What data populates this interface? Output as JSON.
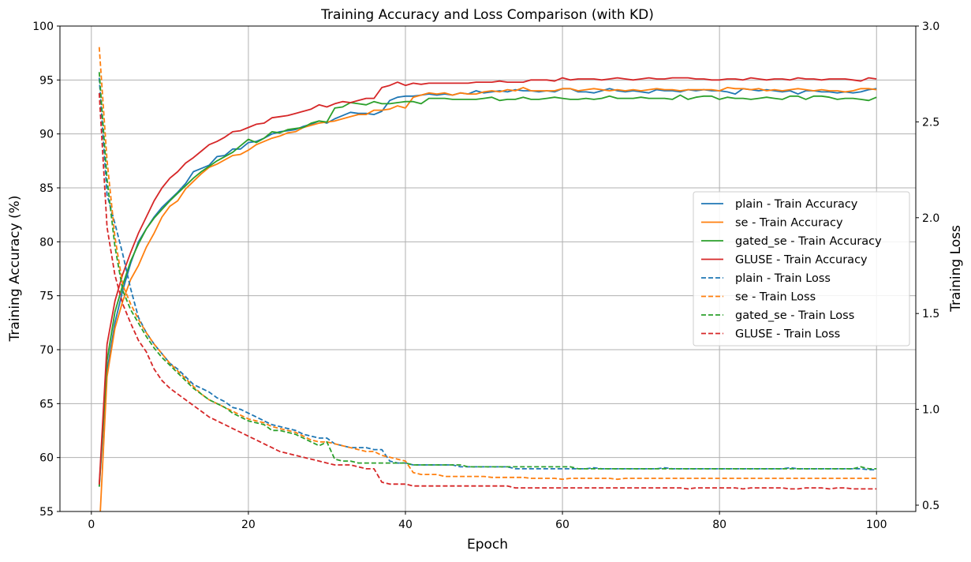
{
  "chart_data": {
    "type": "line",
    "title": "Training Accuracy and Loss Comparison (with KD)",
    "xlabel": "Epoch",
    "ylabel": "Training Accuracy (%)",
    "ylabel_right": "Training Loss",
    "xlim": [
      -4,
      105
    ],
    "ylim": [
      55,
      100
    ],
    "ylim_right": [
      0.467,
      3.0
    ],
    "xticks": [
      0,
      20,
      40,
      60,
      80,
      100
    ],
    "yticks": [
      55,
      60,
      65,
      70,
      75,
      80,
      85,
      90,
      95,
      100
    ],
    "yticks_right": [
      "0.5",
      "1.0",
      "1.5",
      "2.0",
      "2.5",
      "3.0"
    ],
    "grid": true,
    "legend_position": "center-right",
    "colors": {
      "plain": "#1f77b4",
      "se": "#ff7f0e",
      "gated_se": "#2ca02c",
      "GLUSE": "#d62728"
    },
    "epochs_start": 1,
    "series": [
      {
        "name": "plain - Train Accuracy",
        "axis": "left",
        "style": "solid",
        "color": "#1f77b4",
        "values": [
          57.3,
          68.0,
          72.5,
          75.5,
          78.0,
          80.0,
          81.2,
          82.3,
          83.2,
          83.9,
          84.6,
          85.4,
          86.5,
          86.8,
          87.1,
          87.9,
          88.0,
          88.6,
          88.6,
          89.2,
          89.3,
          89.6,
          90.0,
          90.2,
          90.3,
          90.4,
          90.7,
          90.9,
          91.2,
          91.0,
          91.4,
          91.7,
          92.0,
          91.9,
          91.9,
          91.8,
          92.1,
          93.1,
          93.4,
          93.5,
          93.5,
          93.6,
          93.7,
          93.6,
          93.7,
          93.6,
          93.8,
          93.7,
          94.0,
          93.8,
          93.9,
          94.0,
          93.9,
          94.1,
          94.0,
          94.0,
          93.9,
          94.0,
          93.9,
          94.2,
          94.2,
          93.9,
          93.9,
          93.8,
          94.0,
          94.2,
          94.0,
          93.9,
          94.0,
          93.9,
          93.8,
          94.1,
          94.0,
          94.0,
          93.9,
          94.1,
          94.0,
          94.1,
          94.0,
          94.0,
          93.9,
          93.7,
          94.2,
          94.1,
          94.0,
          94.1,
          94.0,
          93.9,
          94.0,
          93.7,
          94.0,
          94.0,
          93.9,
          93.9,
          93.8,
          93.9,
          93.8,
          93.9,
          94.1,
          94.2
        ]
      },
      {
        "name": "se - Train Accuracy",
        "axis": "left",
        "style": "solid",
        "color": "#ff7f0e",
        "values": [
          53.0,
          67.5,
          72.0,
          74.5,
          76.5,
          77.8,
          79.5,
          80.8,
          82.3,
          83.3,
          83.8,
          84.9,
          85.6,
          86.3,
          86.9,
          87.2,
          87.6,
          88.0,
          88.1,
          88.5,
          89.0,
          89.3,
          89.6,
          89.8,
          90.1,
          90.2,
          90.6,
          90.8,
          91.0,
          91.1,
          91.2,
          91.4,
          91.6,
          91.8,
          91.8,
          92.2,
          92.2,
          92.3,
          92.6,
          92.4,
          93.4,
          93.6,
          93.8,
          93.7,
          93.8,
          93.6,
          93.8,
          93.7,
          93.7,
          93.9,
          94.0,
          93.9,
          94.1,
          94.0,
          94.3,
          94.0,
          94.0,
          94.0,
          94.0,
          94.2,
          94.2,
          94.0,
          94.1,
          94.2,
          94.1,
          94.0,
          94.1,
          94.0,
          94.1,
          94.0,
          94.1,
          94.2,
          94.1,
          94.1,
          94.0,
          94.1,
          94.1,
          94.1,
          94.1,
          94.0,
          94.3,
          94.2,
          94.2,
          94.1,
          94.2,
          94.0,
          94.1,
          94.0,
          94.1,
          94.2,
          94.1,
          94.0,
          94.1,
          94.0,
          94.0,
          93.9,
          94.0,
          94.2,
          94.2,
          94.1
        ]
      },
      {
        "name": "gated_se - Train Accuracy",
        "axis": "left",
        "style": "solid",
        "color": "#2ca02c",
        "values": [
          57.3,
          69.0,
          73.5,
          76.0,
          78.2,
          79.8,
          81.2,
          82.2,
          83.0,
          83.8,
          84.5,
          85.2,
          85.9,
          86.5,
          87.0,
          87.5,
          87.9,
          88.3,
          88.9,
          89.5,
          89.2,
          89.6,
          90.2,
          90.1,
          90.4,
          90.5,
          90.6,
          91.0,
          91.2,
          91.1,
          92.4,
          92.5,
          92.9,
          92.8,
          92.7,
          93.0,
          92.8,
          92.8,
          92.9,
          93.0,
          93.0,
          92.8,
          93.3,
          93.3,
          93.3,
          93.2,
          93.2,
          93.2,
          93.2,
          93.3,
          93.4,
          93.1,
          93.2,
          93.2,
          93.4,
          93.2,
          93.2,
          93.3,
          93.4,
          93.3,
          93.2,
          93.2,
          93.3,
          93.2,
          93.3,
          93.5,
          93.3,
          93.3,
          93.3,
          93.4,
          93.3,
          93.3,
          93.3,
          93.2,
          93.6,
          93.2,
          93.4,
          93.5,
          93.5,
          93.2,
          93.4,
          93.3,
          93.3,
          93.2,
          93.3,
          93.4,
          93.3,
          93.2,
          93.5,
          93.5,
          93.2,
          93.5,
          93.5,
          93.4,
          93.2,
          93.3,
          93.3,
          93.2,
          93.1,
          93.4
        ]
      },
      {
        "name": "GLUSE - Train Accuracy",
        "axis": "left",
        "style": "solid",
        "color": "#d62728",
        "values": [
          57.5,
          70.5,
          74.5,
          77.0,
          79.0,
          80.8,
          82.3,
          83.8,
          85.0,
          85.9,
          86.5,
          87.3,
          87.8,
          88.4,
          89.0,
          89.3,
          89.7,
          90.2,
          90.3,
          90.6,
          90.9,
          91.0,
          91.5,
          91.6,
          91.7,
          91.9,
          92.1,
          92.3,
          92.7,
          92.5,
          92.8,
          93.0,
          92.9,
          93.1,
          93.3,
          93.3,
          94.3,
          94.5,
          94.8,
          94.5,
          94.7,
          94.6,
          94.7,
          94.7,
          94.7,
          94.7,
          94.7,
          94.7,
          94.8,
          94.8,
          94.8,
          94.9,
          94.8,
          94.8,
          94.8,
          95.0,
          95.0,
          95.0,
          94.9,
          95.2,
          95.0,
          95.1,
          95.1,
          95.1,
          95.0,
          95.1,
          95.2,
          95.1,
          95.0,
          95.1,
          95.2,
          95.1,
          95.1,
          95.2,
          95.2,
          95.2,
          95.1,
          95.1,
          95.0,
          95.0,
          95.1,
          95.1,
          95.0,
          95.2,
          95.1,
          95.0,
          95.1,
          95.1,
          95.0,
          95.2,
          95.1,
          95.1,
          95.0,
          95.1,
          95.1,
          95.1,
          95.0,
          94.9,
          95.2,
          95.1
        ]
      },
      {
        "name": "plain - Train Loss",
        "axis": "right",
        "style": "dashed",
        "color": "#1f77b4",
        "values": [
          2.73,
          2.12,
          1.97,
          1.81,
          1.63,
          1.48,
          1.4,
          1.34,
          1.29,
          1.24,
          1.21,
          1.17,
          1.13,
          1.11,
          1.09,
          1.06,
          1.04,
          1.01,
          1.0,
          0.98,
          0.96,
          0.94,
          0.92,
          0.91,
          0.9,
          0.89,
          0.87,
          0.86,
          0.85,
          0.85,
          0.82,
          0.81,
          0.8,
          0.8,
          0.8,
          0.79,
          0.79,
          0.73,
          0.72,
          0.72,
          0.71,
          0.71,
          0.71,
          0.71,
          0.71,
          0.71,
          0.7,
          0.7,
          0.7,
          0.7,
          0.7,
          0.7,
          0.7,
          0.69,
          0.69,
          0.69,
          0.69,
          0.69,
          0.69,
          0.69,
          0.69,
          0.69,
          0.69,
          0.695,
          0.69,
          0.69,
          0.69,
          0.69,
          0.69,
          0.69,
          0.69,
          0.69,
          0.695,
          0.69,
          0.69,
          0.69,
          0.69,
          0.69,
          0.69,
          0.69,
          0.69,
          0.69,
          0.69,
          0.69,
          0.69,
          0.69,
          0.69,
          0.69,
          0.695,
          0.69,
          0.69,
          0.69,
          0.69,
          0.69,
          0.69,
          0.69,
          0.69,
          0.69,
          0.685,
          0.685
        ]
      },
      {
        "name": "se - Train Loss",
        "axis": "right",
        "style": "dashed",
        "color": "#ff7f0e",
        "values": [
          2.89,
          2.3,
          1.9,
          1.65,
          1.55,
          1.47,
          1.4,
          1.34,
          1.29,
          1.24,
          1.2,
          1.16,
          1.12,
          1.08,
          1.05,
          1.03,
          1.01,
          0.99,
          0.97,
          0.95,
          0.94,
          0.93,
          0.91,
          0.9,
          0.89,
          0.88,
          0.86,
          0.84,
          0.83,
          0.83,
          0.82,
          0.81,
          0.8,
          0.79,
          0.78,
          0.78,
          0.76,
          0.75,
          0.74,
          0.73,
          0.67,
          0.66,
          0.66,
          0.66,
          0.65,
          0.65,
          0.65,
          0.65,
          0.65,
          0.65,
          0.645,
          0.645,
          0.645,
          0.645,
          0.645,
          0.64,
          0.64,
          0.64,
          0.64,
          0.635,
          0.64,
          0.64,
          0.64,
          0.64,
          0.64,
          0.64,
          0.635,
          0.64,
          0.64,
          0.64,
          0.64,
          0.64,
          0.64,
          0.64,
          0.64,
          0.64,
          0.64,
          0.64,
          0.64,
          0.64,
          0.64,
          0.64,
          0.64,
          0.64,
          0.64,
          0.64,
          0.64,
          0.64,
          0.64,
          0.64,
          0.64,
          0.64,
          0.64,
          0.64,
          0.64,
          0.64,
          0.64,
          0.64,
          0.64,
          0.64
        ]
      },
      {
        "name": "gated_se - Train Loss",
        "axis": "right",
        "style": "dashed",
        "color": "#2ca02c",
        "values": [
          2.76,
          2.2,
          1.85,
          1.62,
          1.52,
          1.45,
          1.38,
          1.32,
          1.27,
          1.23,
          1.19,
          1.15,
          1.11,
          1.08,
          1.05,
          1.03,
          1.01,
          0.98,
          0.96,
          0.94,
          0.93,
          0.92,
          0.89,
          0.89,
          0.88,
          0.87,
          0.85,
          0.83,
          0.81,
          0.83,
          0.74,
          0.73,
          0.73,
          0.72,
          0.72,
          0.72,
          0.72,
          0.72,
          0.72,
          0.72,
          0.71,
          0.71,
          0.71,
          0.71,
          0.71,
          0.71,
          0.71,
          0.7,
          0.7,
          0.7,
          0.7,
          0.7,
          0.7,
          0.7,
          0.7,
          0.7,
          0.7,
          0.7,
          0.7,
          0.7,
          0.7,
          0.69,
          0.69,
          0.69,
          0.69,
          0.69,
          0.69,
          0.69,
          0.69,
          0.69,
          0.69,
          0.69,
          0.69,
          0.69,
          0.69,
          0.69,
          0.69,
          0.69,
          0.69,
          0.69,
          0.69,
          0.69,
          0.69,
          0.69,
          0.69,
          0.69,
          0.69,
          0.69,
          0.69,
          0.69,
          0.69,
          0.69,
          0.69,
          0.69,
          0.69,
          0.69,
          0.69,
          0.7,
          0.69,
          0.69
        ]
      },
      {
        "name": "GLUSE - Train Loss",
        "axis": "right",
        "style": "dashed",
        "color": "#d62728",
        "values": [
          2.65,
          1.95,
          1.7,
          1.55,
          1.45,
          1.36,
          1.3,
          1.21,
          1.15,
          1.11,
          1.08,
          1.05,
          1.02,
          0.99,
          0.96,
          0.94,
          0.92,
          0.9,
          0.88,
          0.86,
          0.84,
          0.82,
          0.8,
          0.78,
          0.77,
          0.76,
          0.75,
          0.74,
          0.73,
          0.72,
          0.71,
          0.71,
          0.71,
          0.7,
          0.69,
          0.69,
          0.62,
          0.61,
          0.61,
          0.61,
          0.6,
          0.6,
          0.6,
          0.6,
          0.6,
          0.6,
          0.6,
          0.6,
          0.6,
          0.6,
          0.6,
          0.6,
          0.6,
          0.59,
          0.59,
          0.59,
          0.59,
          0.59,
          0.59,
          0.59,
          0.59,
          0.59,
          0.59,
          0.59,
          0.59,
          0.59,
          0.59,
          0.59,
          0.59,
          0.59,
          0.59,
          0.59,
          0.59,
          0.59,
          0.59,
          0.585,
          0.59,
          0.59,
          0.59,
          0.59,
          0.59,
          0.59,
          0.585,
          0.59,
          0.59,
          0.59,
          0.59,
          0.59,
          0.585,
          0.585,
          0.59,
          0.59,
          0.59,
          0.585,
          0.59,
          0.59,
          0.585,
          0.585,
          0.585,
          0.585
        ]
      }
    ]
  }
}
